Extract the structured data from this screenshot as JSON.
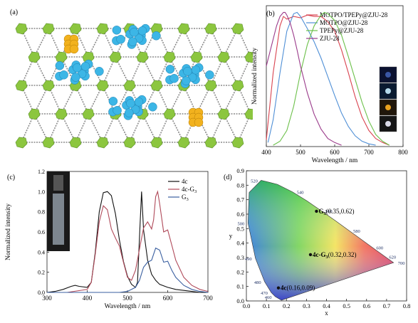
{
  "panels": {
    "a": {
      "label": "(a)"
    },
    "b": {
      "label": "(b)"
    },
    "c": {
      "label": "(c)"
    },
    "d": {
      "label": "(d)"
    }
  },
  "colors": {
    "motpo_tpepy": "#d9434f",
    "motpo": "#4f8fd6",
    "tpepy": "#6cc04a",
    "zju28": "#9a3a8a",
    "c_4c": "#111111",
    "c_4cg3": "#b04a5a",
    "c_g3": "#3a5fa0",
    "mof_cage": "#3cb6e6",
    "guest": "#f2b21e",
    "node": "#8cc63f",
    "framework": "#8a8a8a"
  },
  "chart_data": [
    {
      "type": "line",
      "panel": "b",
      "xlabel": "Wavelength / nm",
      "ylabel": "Normalized intensity",
      "xlim": [
        400,
        800
      ],
      "ylim": [
        0,
        1.05
      ],
      "xticks": [
        400,
        500,
        600,
        700,
        800
      ],
      "legend_position": "top-right",
      "series": [
        {
          "name": "MOTPO/TPEPy@ZJU-28",
          "color_key": "motpo_tpepy",
          "x": [
            400,
            420,
            440,
            450,
            460,
            480,
            500,
            520,
            540,
            560,
            580,
            600,
            620,
            640,
            660,
            680,
            700,
            720,
            740,
            760
          ],
          "y": [
            0.05,
            0.55,
            0.9,
            0.97,
            0.95,
            0.97,
            0.96,
            0.98,
            0.97,
            0.97,
            0.93,
            0.86,
            0.72,
            0.55,
            0.37,
            0.22,
            0.12,
            0.06,
            0.03,
            0.01
          ]
        },
        {
          "name": "MOTPO@ZJU-28",
          "color_key": "motpo",
          "x": [
            405,
            420,
            440,
            460,
            480,
            490,
            500,
            520,
            540,
            560,
            580,
            600,
            620,
            640,
            660,
            680,
            700,
            720
          ],
          "y": [
            0.03,
            0.2,
            0.55,
            0.86,
            0.99,
            1.0,
            0.97,
            0.88,
            0.78,
            0.66,
            0.52,
            0.38,
            0.25,
            0.15,
            0.08,
            0.04,
            0.02,
            0.01
          ]
        },
        {
          "name": "TPEPy@ZJU-28",
          "color_key": "tpepy",
          "x": [
            420,
            440,
            460,
            480,
            500,
            520,
            540,
            560,
            570,
            580,
            600,
            620,
            640,
            660,
            680,
            700,
            720,
            740,
            760
          ],
          "y": [
            0.01,
            0.04,
            0.12,
            0.3,
            0.55,
            0.76,
            0.9,
            0.98,
            1.0,
            0.99,
            0.94,
            0.83,
            0.67,
            0.5,
            0.33,
            0.19,
            0.09,
            0.04,
            0.01
          ]
        },
        {
          "name": "ZJU-28",
          "color_key": "zju28",
          "x": [
            400,
            410,
            420,
            430,
            440,
            450,
            455,
            460,
            470,
            480,
            490,
            500,
            520,
            540,
            560,
            580,
            600,
            620
          ],
          "y": [
            0.6,
            0.7,
            0.8,
            0.9,
            0.97,
            1.0,
            1.0,
            0.98,
            0.92,
            0.83,
            0.72,
            0.6,
            0.4,
            0.24,
            0.13,
            0.06,
            0.03,
            0.01
          ]
        }
      ]
    },
    {
      "type": "line",
      "panel": "c",
      "xlabel": "Wavelength / nm",
      "ylabel": "Normalized intensity",
      "xlim": [
        300,
        700
      ],
      "ylim": [
        0,
        1.2
      ],
      "xticks": [
        300,
        400,
        500,
        600,
        700
      ],
      "yticks": [
        0.0,
        0.2,
        0.4,
        0.6,
        0.8,
        1.0,
        1.2
      ],
      "legend_position": "top-right",
      "series": [
        {
          "name": "4c",
          "color_key": "c_4c",
          "x": [
            300,
            320,
            340,
            360,
            370,
            380,
            400,
            410,
            420,
            430,
            440,
            450,
            460,
            470,
            480,
            490,
            500,
            510,
            520,
            525,
            530,
            535,
            540,
            550,
            560,
            570,
            580,
            600,
            620,
            640,
            660,
            680,
            700
          ],
          "y": [
            0.0,
            0.01,
            0.03,
            0.06,
            0.07,
            0.06,
            0.05,
            0.1,
            0.4,
            0.8,
            0.99,
            1.0,
            0.96,
            0.78,
            0.52,
            0.31,
            0.16,
            0.08,
            0.05,
            0.1,
            0.55,
            1.0,
            0.62,
            0.32,
            0.18,
            0.12,
            0.08,
            0.05,
            0.03,
            0.02,
            0.01,
            0.0,
            0.0
          ]
        },
        {
          "name": "4c-G",
          "color_key": "c_4cg3",
          "x": [
            300,
            350,
            400,
            410,
            420,
            430,
            440,
            450,
            460,
            470,
            480,
            490,
            500,
            510,
            520,
            530,
            540,
            550,
            560,
            565,
            570,
            575,
            580,
            590,
            600,
            610,
            620,
            640,
            660,
            680,
            700
          ],
          "y": [
            0.0,
            0.0,
            0.03,
            0.1,
            0.38,
            0.7,
            0.86,
            0.82,
            0.63,
            0.54,
            0.46,
            0.3,
            0.15,
            0.12,
            0.22,
            0.43,
            0.64,
            0.7,
            0.63,
            0.72,
            0.95,
            1.0,
            0.88,
            0.6,
            0.62,
            0.47,
            0.32,
            0.15,
            0.07,
            0.03,
            0.01
          ]
        },
        {
          "name": "G",
          "color_key": "c_g3",
          "x": [
            300,
            400,
            450,
            480,
            500,
            520,
            530,
            540,
            550,
            560,
            570,
            580,
            590,
            600,
            610,
            620,
            640,
            660,
            680,
            700
          ],
          "y": [
            0.0,
            0.0,
            0.0,
            0.0,
            0.01,
            0.05,
            0.12,
            0.25,
            0.3,
            0.32,
            0.44,
            0.42,
            0.3,
            0.31,
            0.22,
            0.15,
            0.07,
            0.03,
            0.01,
            0.0
          ]
        }
      ],
      "legend_subscripts": {
        "4c-G": "3",
        "G": "3"
      }
    },
    {
      "type": "scatter",
      "panel": "d",
      "xlabel": "x",
      "ylabel": "y",
      "xlim": [
        0,
        0.8
      ],
      "ylim": [
        0,
        0.9
      ],
      "xticks": [
        0.0,
        0.1,
        0.2,
        0.3,
        0.4,
        0.5,
        0.6,
        0.7,
        0.8
      ],
      "yticks": [
        0.0,
        0.1,
        0.2,
        0.3,
        0.4,
        0.5,
        0.6,
        0.7,
        0.8,
        0.9
      ],
      "locus_wavelength_labels": [
        {
          "text": "460",
          "x": 0.144,
          "y": 0.03
        },
        {
          "text": "470",
          "x": 0.124,
          "y": 0.058
        },
        {
          "text": "480",
          "x": 0.091,
          "y": 0.133
        },
        {
          "text": "490",
          "x": 0.045,
          "y": 0.295
        },
        {
          "text": "500",
          "x": 0.008,
          "y": 0.538
        },
        {
          "text": "520",
          "x": 0.074,
          "y": 0.834
        },
        {
          "text": "540",
          "x": 0.23,
          "y": 0.754
        },
        {
          "text": "560",
          "x": 0.373,
          "y": 0.624
        },
        {
          "text": "580",
          "x": 0.512,
          "y": 0.487
        },
        {
          "text": "600",
          "x": 0.627,
          "y": 0.372
        },
        {
          "text": "620",
          "x": 0.691,
          "y": 0.308
        },
        {
          "text": "700",
          "x": 0.735,
          "y": 0.265
        }
      ],
      "points": [
        {
          "label": "G",
          "sub": "3",
          "value": "(0.35,0.62)",
          "x": 0.35,
          "y": 0.62
        },
        {
          "label": "4c-G",
          "sub": "3",
          "value": "(0.32,0.32)",
          "x": 0.32,
          "y": 0.32
        },
        {
          "label": "4c",
          "sub": "",
          "value": "(0.16,0.09)",
          "x": 0.16,
          "y": 0.09
        }
      ]
    }
  ]
}
